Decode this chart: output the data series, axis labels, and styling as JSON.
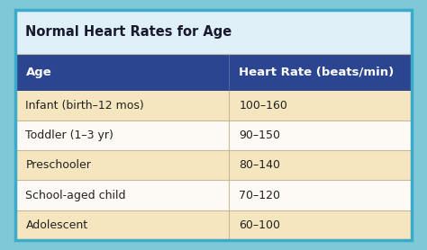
{
  "title": "Normal Heart Rates for Age",
  "col_headers": [
    "Age",
    "Heart Rate (beats/min)"
  ],
  "rows": [
    [
      "Infant (birth–12 mos)",
      "100–160"
    ],
    [
      "Toddler (1–3 yr)",
      "90–150"
    ],
    [
      "Preschooler",
      "80–140"
    ],
    [
      "School-aged child",
      "70–120"
    ],
    [
      "Adolescent",
      "60–100"
    ]
  ],
  "outer_bg": "#7ec8d8",
  "inner_bg": "#dff0f8",
  "header_bg": "#2b4590",
  "header_fg": "#ffffff",
  "row_bg_odd": "#f5e6c0",
  "row_bg_even": "#fdfaf5",
  "title_color": "#1a1a2e",
  "cell_text_color": "#222222",
  "title_fontsize": 10.5,
  "header_fontsize": 9.5,
  "cell_fontsize": 9.0,
  "col_split": 0.5,
  "outer_border_color": "#3aabcb",
  "divider_color": "#c8b89a",
  "header_divider_color": "#4a6aaa"
}
